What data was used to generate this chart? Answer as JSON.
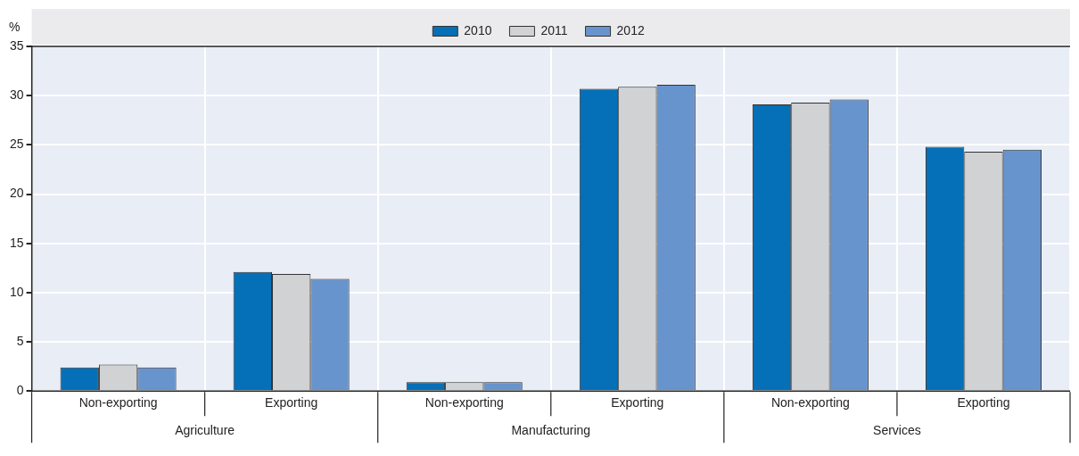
{
  "chart_data": {
    "type": "bar",
    "ylabel": "%",
    "categories": [
      "Non-exporting",
      "Exporting",
      "Non-exporting",
      "Exporting",
      "Non-exporting",
      "Exporting"
    ],
    "annotations": [
      "Agriculture",
      "Manufacturing",
      "Services"
    ],
    "series": [
      {
        "name": "2010",
        "color": "#0570b7",
        "values": [
          2.4,
          12.1,
          0.9,
          30.7,
          29.1,
          24.8
        ]
      },
      {
        "name": "2011",
        "color": "#d1d2d4",
        "values": [
          2.7,
          11.9,
          0.9,
          30.9,
          29.3,
          24.3
        ]
      },
      {
        "name": "2012",
        "color": "#6894cd",
        "values": [
          2.4,
          11.4,
          0.9,
          31.1,
          29.6,
          24.5
        ]
      }
    ],
    "ylim": [
      0,
      35
    ],
    "yticks": [
      0,
      5,
      10,
      15,
      20,
      25,
      30,
      35
    ],
    "grid": true,
    "legend": "top"
  }
}
